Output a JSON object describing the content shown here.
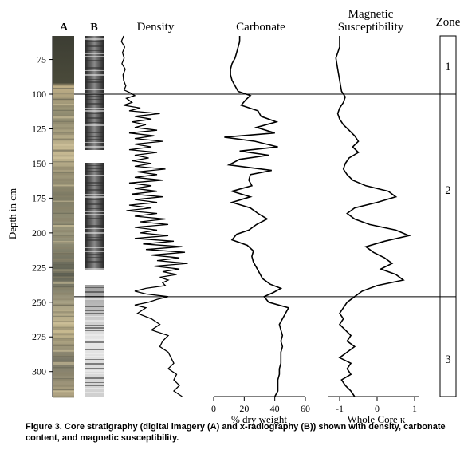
{
  "caption": "Figure 3. Core stratigraphy (digital imagery (A) and x-radiography (B)) shown with density, carbonate content, and magnetic susceptibility.",
  "chart_data": {
    "type": "line",
    "y_axis": {
      "label": "Depth in cm",
      "range": [
        58,
        318
      ],
      "ticks": [
        75,
        100,
        125,
        150,
        175,
        200,
        225,
        250,
        275,
        300
      ],
      "inverted": true
    },
    "columns": {
      "core_photo_label": "A",
      "xray_label": "B",
      "density_title": "Density",
      "carbonate_title": "Carbonate",
      "magsus_title_line1": "Magnetic",
      "magsus_title_line2": "Susceptibility",
      "zone_title": "Zone"
    },
    "zone_boundaries": [
      100,
      246
    ],
    "zones": [
      {
        "label": "1",
        "depth": 80
      },
      {
        "label": "2",
        "depth": 169
      },
      {
        "label": "3",
        "depth": 291
      }
    ],
    "density": {
      "axis": "none",
      "points": [
        [
          58,
          1.0
        ],
        [
          62,
          0.6
        ],
        [
          66,
          1.2
        ],
        [
          70,
          0.8
        ],
        [
          74,
          1.1
        ],
        [
          78,
          0.7
        ],
        [
          82,
          1.3
        ],
        [
          86,
          0.9
        ],
        [
          90,
          1.0
        ],
        [
          94,
          1.4
        ],
        [
          97,
          1.1
        ],
        [
          99,
          2.2
        ],
        [
          101,
          3.0
        ],
        [
          103,
          1.5
        ],
        [
          106,
          2.5
        ],
        [
          108,
          1.0
        ],
        [
          110,
          4.0
        ],
        [
          112,
          2.0
        ],
        [
          114,
          7.5
        ],
        [
          116,
          3.0
        ],
        [
          118,
          6.0
        ],
        [
          120,
          2.5
        ],
        [
          122,
          5.0
        ],
        [
          124,
          3.0
        ],
        [
          126,
          7.0
        ],
        [
          128,
          2.0
        ],
        [
          130,
          6.5
        ],
        [
          132,
          3.0
        ],
        [
          134,
          8.0
        ],
        [
          136,
          3.0
        ],
        [
          138,
          6.0
        ],
        [
          140,
          2.0
        ],
        [
          142,
          7.0
        ],
        [
          144,
          3.0
        ],
        [
          146,
          5.5
        ],
        [
          148,
          2.5
        ],
        [
          150,
          6.0
        ],
        [
          152,
          3.0
        ],
        [
          154,
          8.5
        ],
        [
          156,
          3.5
        ],
        [
          158,
          7.0
        ],
        [
          160,
          3.0
        ],
        [
          162,
          8.0
        ],
        [
          164,
          2.0
        ],
        [
          166,
          6.0
        ],
        [
          168,
          3.0
        ],
        [
          170,
          7.0
        ],
        [
          172,
          2.5
        ],
        [
          174,
          8.0
        ],
        [
          176,
          3.0
        ],
        [
          178,
          7.0
        ],
        [
          180,
          2.0
        ],
        [
          182,
          6.0
        ],
        [
          184,
          1.5
        ],
        [
          186,
          7.0
        ],
        [
          188,
          3.0
        ],
        [
          190,
          8.5
        ],
        [
          192,
          4.0
        ],
        [
          194,
          9.0
        ],
        [
          196,
          3.0
        ],
        [
          198,
          7.0
        ],
        [
          200,
          4.0
        ],
        [
          202,
          9.0
        ],
        [
          204,
          3.0
        ],
        [
          206,
          10.0
        ],
        [
          208,
          4.5
        ],
        [
          210,
          11.5
        ],
        [
          212,
          5.0
        ],
        [
          214,
          12.0
        ],
        [
          216,
          6.0
        ],
        [
          218,
          11.0
        ],
        [
          220,
          7.0
        ],
        [
          222,
          12.5
        ],
        [
          224,
          6.5
        ],
        [
          226,
          11.0
        ],
        [
          228,
          8.0
        ],
        [
          230,
          10.5
        ],
        [
          232,
          7.5
        ],
        [
          234,
          9.0
        ],
        [
          236,
          8.0
        ],
        [
          238,
          8.5
        ],
        [
          240,
          5.0
        ],
        [
          242,
          3.0
        ],
        [
          244,
          5.0
        ],
        [
          246,
          9.0
        ],
        [
          248,
          7.0
        ],
        [
          250,
          5.5
        ],
        [
          252,
          3.0
        ],
        [
          254,
          5.0
        ],
        [
          258,
          3.5
        ],
        [
          262,
          6.0
        ],
        [
          266,
          7.5
        ],
        [
          270,
          6.0
        ],
        [
          274,
          9.0
        ],
        [
          278,
          8.0
        ],
        [
          282,
          7.5
        ],
        [
          286,
          9.0
        ],
        [
          290,
          9.5
        ],
        [
          294,
          10.0
        ],
        [
          298,
          9.0
        ],
        [
          302,
          10.5
        ],
        [
          306,
          10.0
        ],
        [
          310,
          11.0
        ],
        [
          314,
          10.0
        ],
        [
          318,
          11.5
        ]
      ]
    },
    "carbonate": {
      "axis_label": "% dry weight",
      "xlim": [
        0,
        60
      ],
      "ticks": [
        0,
        20,
        40,
        60
      ],
      "points": [
        [
          58,
          17
        ],
        [
          62,
          17
        ],
        [
          66,
          16
        ],
        [
          70,
          15
        ],
        [
          74,
          14
        ],
        [
          78,
          12
        ],
        [
          82,
          11
        ],
        [
          86,
          11
        ],
        [
          90,
          12
        ],
        [
          94,
          14
        ],
        [
          98,
          16
        ],
        [
          101,
          24
        ],
        [
          104,
          21
        ],
        [
          108,
          18
        ],
        [
          112,
          29
        ],
        [
          116,
          31
        ],
        [
          120,
          41
        ],
        [
          124,
          28
        ],
        [
          128,
          40
        ],
        [
          131,
          7
        ],
        [
          134,
          27
        ],
        [
          138,
          42
        ],
        [
          141,
          17
        ],
        [
          144,
          36
        ],
        [
          147,
          17
        ],
        [
          151,
          10
        ],
        [
          155,
          38
        ],
        [
          158,
          24
        ],
        [
          162,
          23
        ],
        [
          166,
          25
        ],
        [
          170,
          12
        ],
        [
          174,
          24
        ],
        [
          178,
          12
        ],
        [
          182,
          24
        ],
        [
          186,
          29
        ],
        [
          190,
          35
        ],
        [
          194,
          28
        ],
        [
          198,
          23
        ],
        [
          201,
          15
        ],
        [
          205,
          12
        ],
        [
          209,
          22
        ],
        [
          213,
          26
        ],
        [
          217,
          25
        ],
        [
          221,
          26
        ],
        [
          225,
          28
        ],
        [
          229,
          30
        ],
        [
          233,
          32
        ],
        [
          237,
          37
        ],
        [
          240,
          44
        ],
        [
          243,
          39
        ],
        [
          246,
          33
        ],
        [
          250,
          36
        ],
        [
          254,
          49
        ],
        [
          258,
          47
        ],
        [
          262,
          45
        ],
        [
          266,
          43
        ],
        [
          270,
          44
        ],
        [
          274,
          45
        ],
        [
          278,
          44
        ],
        [
          282,
          45
        ],
        [
          286,
          44
        ],
        [
          290,
          44
        ],
        [
          294,
          44
        ],
        [
          298,
          43
        ],
        [
          302,
          43
        ],
        [
          306,
          42
        ],
        [
          310,
          42
        ],
        [
          314,
          42
        ],
        [
          318,
          40
        ]
      ]
    },
    "magnetic_susceptibility": {
      "axis_label": "Whole Core κ",
      "xlim": [
        -1.6,
        1.0
      ],
      "ticks": [
        -1,
        0,
        1
      ],
      "points": [
        [
          58,
          -1.0
        ],
        [
          66,
          -1.0
        ],
        [
          74,
          -1.1
        ],
        [
          82,
          -1.05
        ],
        [
          90,
          -1.0
        ],
        [
          98,
          -0.95
        ],
        [
          102,
          -0.85
        ],
        [
          106,
          -0.9
        ],
        [
          110,
          -1.0
        ],
        [
          114,
          -1.05
        ],
        [
          118,
          -1.0
        ],
        [
          122,
          -0.9
        ],
        [
          126,
          -0.75
        ],
        [
          130,
          -0.6
        ],
        [
          134,
          -0.5
        ],
        [
          138,
          -0.65
        ],
        [
          142,
          -0.5
        ],
        [
          146,
          -0.75
        ],
        [
          150,
          -0.85
        ],
        [
          154,
          -0.9
        ],
        [
          158,
          -0.8
        ],
        [
          162,
          -0.65
        ],
        [
          166,
          -0.3
        ],
        [
          170,
          0.3
        ],
        [
          174,
          0.5
        ],
        [
          178,
          0.0
        ],
        [
          182,
          -0.6
        ],
        [
          186,
          -0.8
        ],
        [
          190,
          -0.6
        ],
        [
          194,
          -0.2
        ],
        [
          198,
          0.5
        ],
        [
          202,
          0.85
        ],
        [
          206,
          0.2
        ],
        [
          210,
          -0.3
        ],
        [
          214,
          -0.1
        ],
        [
          218,
          0.2
        ],
        [
          222,
          0.4
        ],
        [
          226,
          0.1
        ],
        [
          230,
          0.5
        ],
        [
          234,
          0.7
        ],
        [
          238,
          0.0
        ],
        [
          242,
          -0.4
        ],
        [
          246,
          -0.6
        ],
        [
          250,
          -0.8
        ],
        [
          254,
          -0.9
        ],
        [
          258,
          -1.0
        ],
        [
          262,
          -0.9
        ],
        [
          266,
          -1.0
        ],
        [
          270,
          -0.85
        ],
        [
          274,
          -0.7
        ],
        [
          278,
          -0.8
        ],
        [
          282,
          -0.6
        ],
        [
          286,
          -0.8
        ],
        [
          290,
          -1.0
        ],
        [
          294,
          -0.7
        ],
        [
          298,
          -0.8
        ],
        [
          302,
          -0.7
        ],
        [
          306,
          -0.95
        ],
        [
          310,
          -0.85
        ],
        [
          314,
          -0.7
        ],
        [
          318,
          -0.6
        ]
      ]
    }
  }
}
